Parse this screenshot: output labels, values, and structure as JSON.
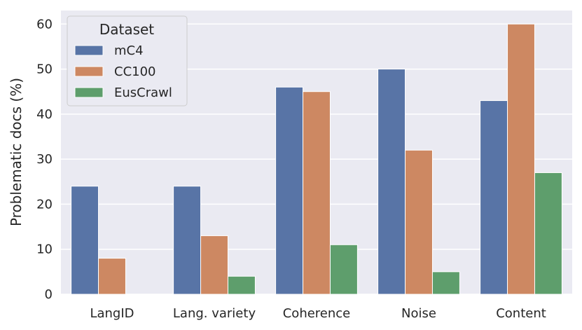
{
  "chart_data": {
    "type": "bar",
    "categories": [
      "LangID",
      "Lang. variety",
      "Coherence",
      "Noise",
      "Content"
    ],
    "series": [
      {
        "name": "mC4",
        "color": "#5874a6",
        "values": [
          24,
          24,
          46,
          50,
          43
        ]
      },
      {
        "name": "CC100",
        "color": "#cd8862",
        "values": [
          8,
          13,
          45,
          32,
          60
        ]
      },
      {
        "name": "EusCrawl",
        "color": "#5e9e6c",
        "values": [
          0,
          4,
          11,
          5,
          27
        ]
      }
    ],
    "ylabel": "Problematic docs (%)",
    "xlabel": "",
    "ylim": [
      0,
      63
    ],
    "yticks": [
      0,
      10,
      20,
      30,
      40,
      50,
      60
    ],
    "legend": {
      "title": "Dataset",
      "position": "top-left"
    },
    "grid": true,
    "background": "#eaeaf2"
  }
}
